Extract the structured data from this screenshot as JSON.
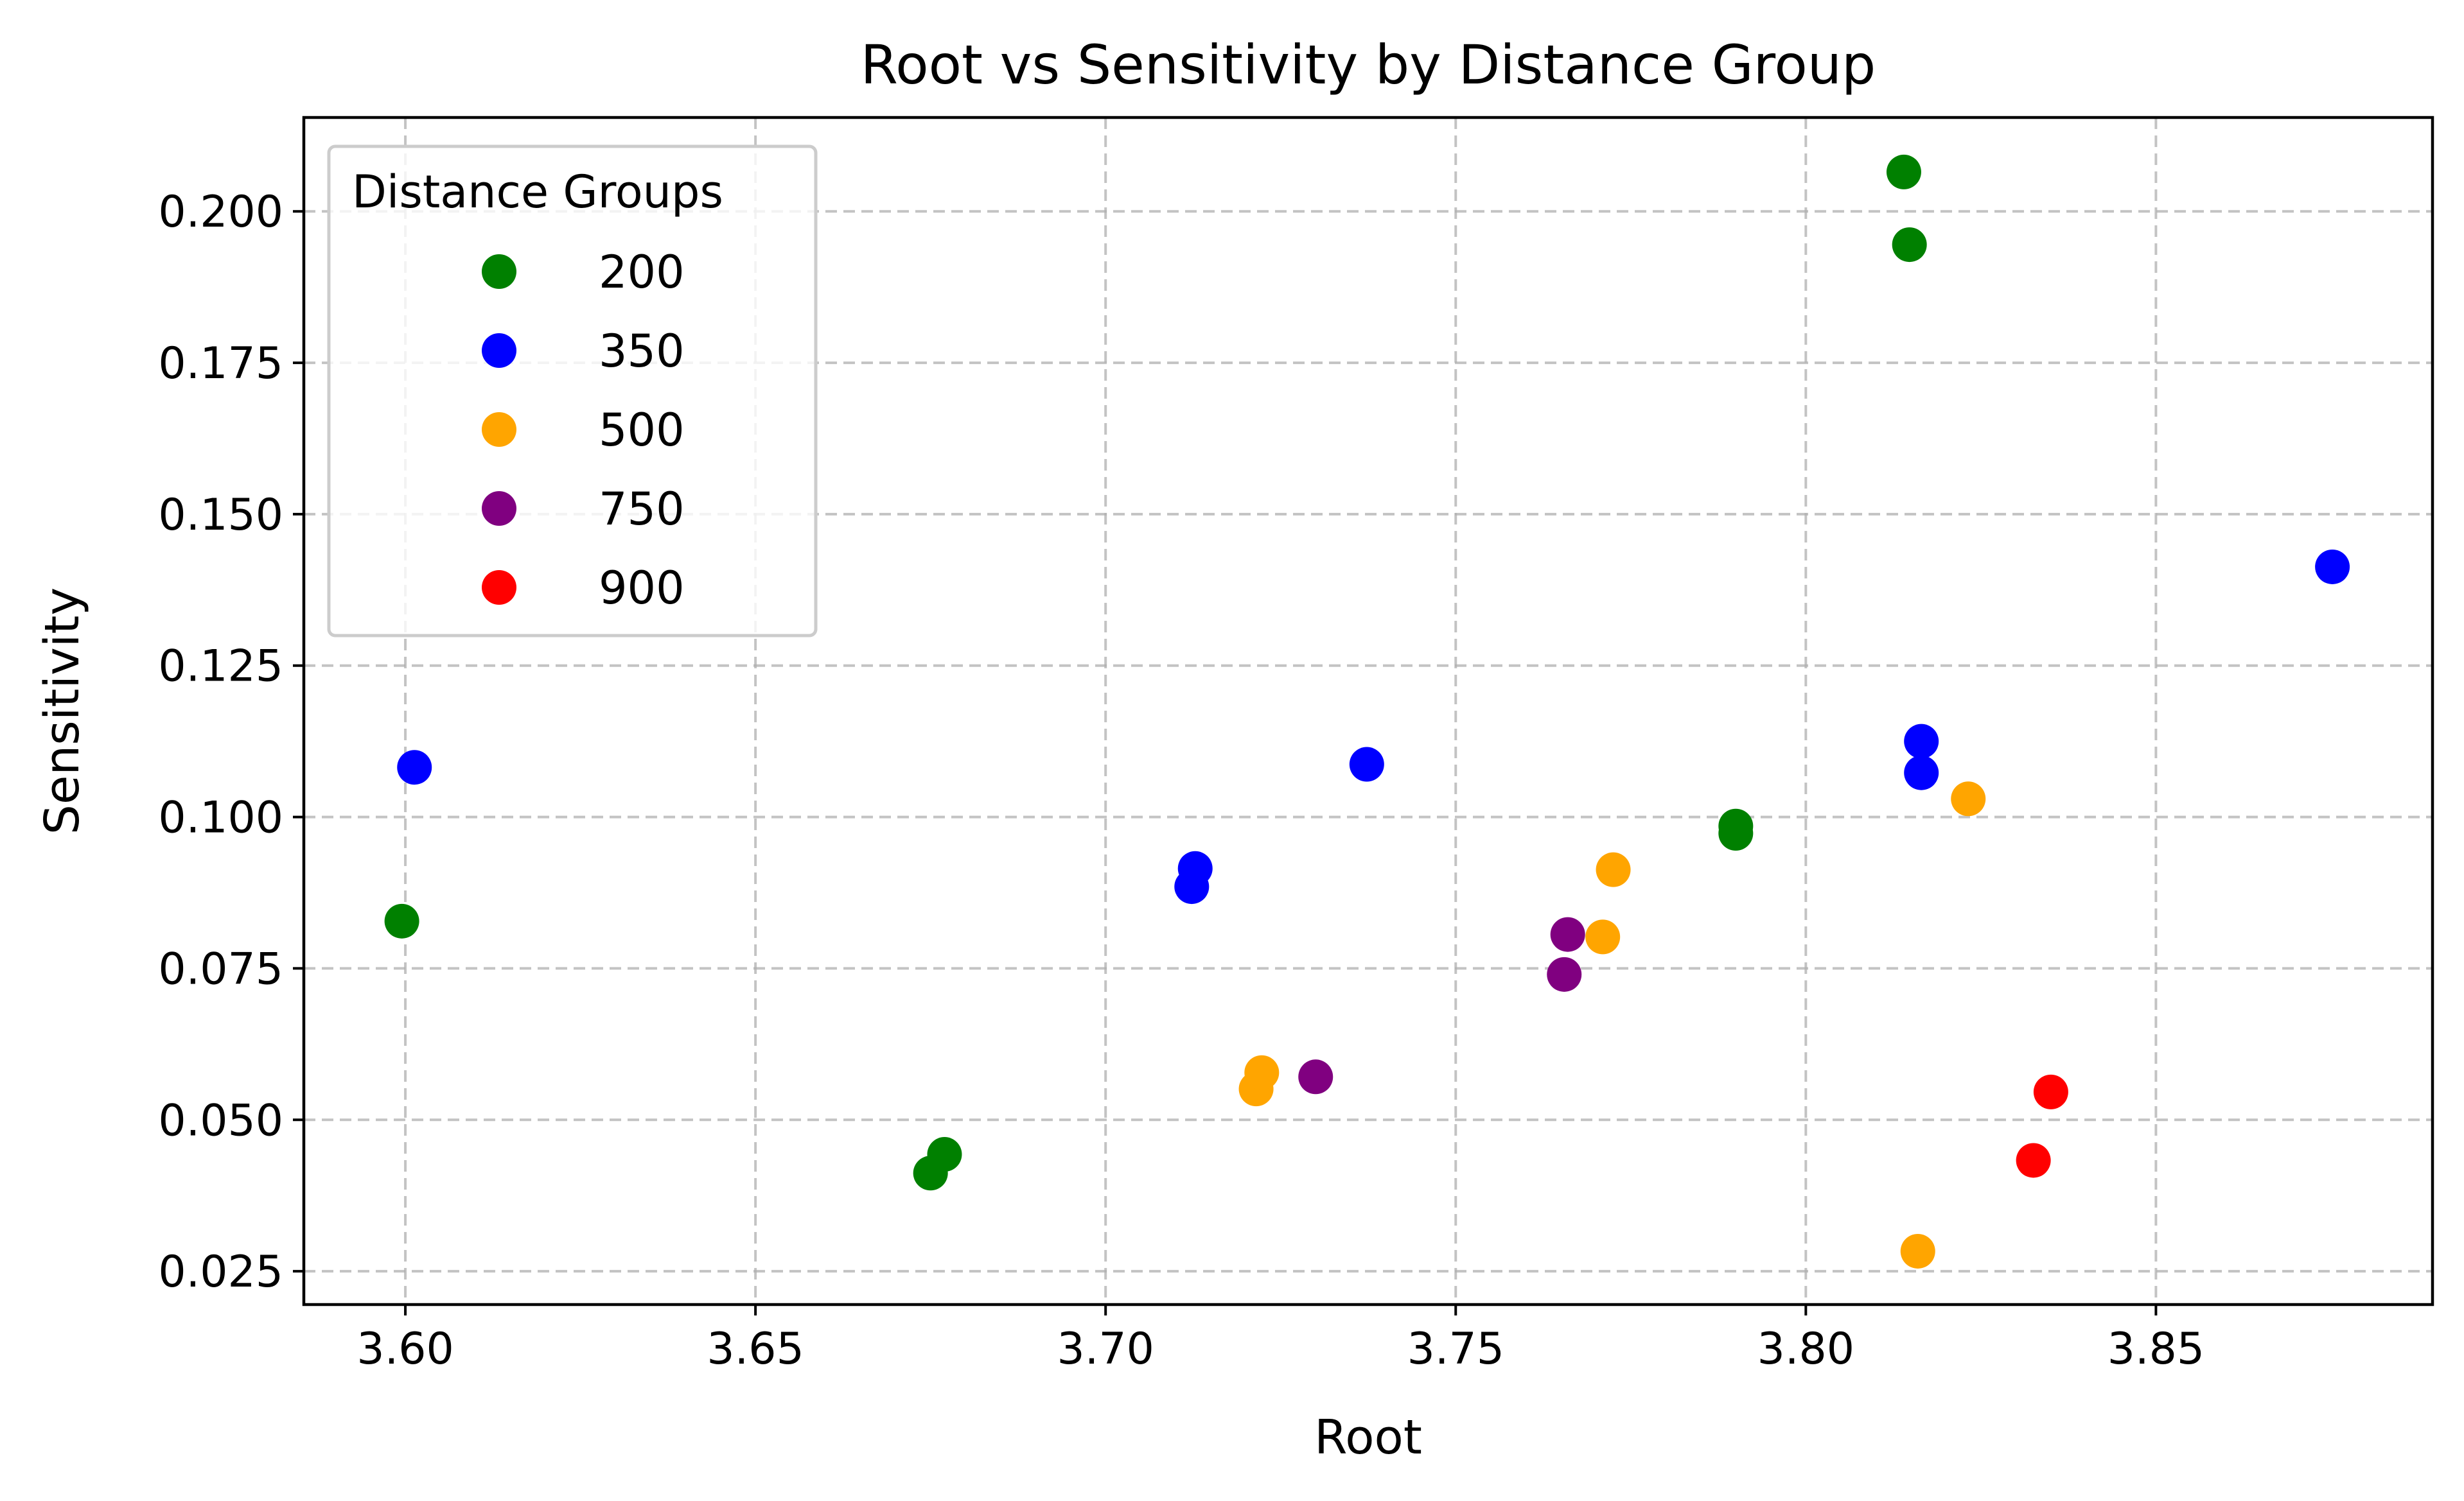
{
  "chart_data": {
    "type": "scatter",
    "title": "Root vs Sensitivity by Distance Group",
    "xlabel": "Root",
    "ylabel": "Sensitivity",
    "xlim": [
      3.5855,
      3.8895
    ],
    "ylim": [
      0.0195,
      0.2155
    ],
    "xticks": [
      3.6,
      3.65,
      3.7,
      3.75,
      3.8,
      3.85
    ],
    "xtick_labels": [
      "3.60",
      "3.65",
      "3.70",
      "3.75",
      "3.80",
      "3.85"
    ],
    "yticks": [
      0.025,
      0.05,
      0.075,
      0.1,
      0.125,
      0.15,
      0.175,
      0.2
    ],
    "ytick_labels": [
      "0.025",
      "0.050",
      "0.075",
      "0.100",
      "0.125",
      "0.150",
      "0.175",
      "0.200"
    ],
    "grid": true,
    "legend": {
      "title": "Distance Groups",
      "position": "upper-left"
    },
    "series": [
      {
        "name": "200",
        "color": "#008000",
        "points": [
          {
            "x": 3.5995,
            "y": 0.0828
          },
          {
            "x": 3.675,
            "y": 0.0412
          },
          {
            "x": 3.677,
            "y": 0.0443
          },
          {
            "x": 3.79,
            "y": 0.0985
          },
          {
            "x": 3.79,
            "y": 0.0973
          },
          {
            "x": 3.814,
            "y": 0.2065
          },
          {
            "x": 3.8148,
            "y": 0.1945
          }
        ]
      },
      {
        "name": "350",
        "color": "#0000ff",
        "points": [
          {
            "x": 3.6013,
            "y": 0.1082
          },
          {
            "x": 3.7123,
            "y": 0.0885
          },
          {
            "x": 3.7128,
            "y": 0.0915
          },
          {
            "x": 3.7373,
            "y": 0.1087
          },
          {
            "x": 3.8165,
            "y": 0.1125
          },
          {
            "x": 3.8165,
            "y": 0.1073
          },
          {
            "x": 3.8752,
            "y": 0.1413
          }
        ]
      },
      {
        "name": "500",
        "color": "#ffa500",
        "points": [
          {
            "x": 3.7215,
            "y": 0.0551
          },
          {
            "x": 3.7223,
            "y": 0.0578
          },
          {
            "x": 3.771,
            "y": 0.0802
          },
          {
            "x": 3.7725,
            "y": 0.0913
          },
          {
            "x": 3.816,
            "y": 0.0283
          },
          {
            "x": 3.8232,
            "y": 0.103
          }
        ]
      },
      {
        "name": "750",
        "color": "#800080",
        "points": [
          {
            "x": 3.73,
            "y": 0.0571
          },
          {
            "x": 3.7655,
            "y": 0.074
          },
          {
            "x": 3.766,
            "y": 0.0806
          }
        ]
      },
      {
        "name": "900",
        "color": "#ff0000",
        "points": [
          {
            "x": 3.8325,
            "y": 0.0433
          },
          {
            "x": 3.835,
            "y": 0.0546
          }
        ]
      }
    ]
  }
}
